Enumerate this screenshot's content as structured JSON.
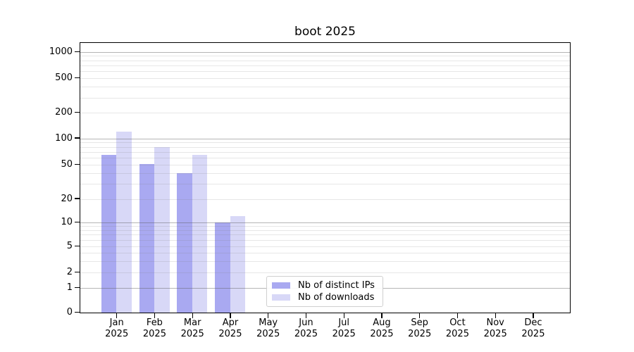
{
  "chart_data": {
    "type": "bar",
    "title": "boot 2025",
    "categories": [
      "Jan 2025",
      "Feb 2025",
      "Mar 2025",
      "Apr 2025",
      "May 2025",
      "Jun 2025",
      "Jul 2025",
      "Aug 2025",
      "Sep 2025",
      "Oct 2025",
      "Nov 2025",
      "Dec 2025"
    ],
    "series": [
      {
        "name": "Nb of distinct IPs",
        "color": "#a9a9f1",
        "values": [
          65,
          51,
          40,
          10,
          0,
          0,
          0,
          0,
          0,
          0,
          0,
          0
        ]
      },
      {
        "name": "Nb of downloads",
        "color": "#d8d8f7",
        "values": [
          120,
          80,
          65,
          12,
          0,
          0,
          0,
          0,
          0,
          0,
          0,
          0
        ]
      }
    ],
    "xlabel": "",
    "ylabel": "",
    "yscale": "log-like",
    "ytick_values": [
      0,
      1,
      2,
      5,
      10,
      20,
      50,
      100,
      200,
      500,
      1000
    ],
    "ytick_labels": [
      "0",
      "1",
      "2",
      "5",
      "10",
      "20",
      "50",
      "100",
      "200",
      "500",
      "1000"
    ],
    "ylim": [
      0,
      1300
    ],
    "grid": "horizontal major+minor, drawn over bars",
    "legend_position": "inside plot, lower center-left",
    "colors": {
      "bar_distinct_ips": "#a9a9f1",
      "bar_downloads": "#d8d8f7",
      "grid_major": "#b0b0b0",
      "grid_minor": "#e6e6e6",
      "axis": "#000000",
      "background": "#ffffff"
    }
  },
  "legend": {
    "items": [
      {
        "label": "Nb of distinct IPs"
      },
      {
        "label": "Nb of downloads"
      }
    ]
  }
}
